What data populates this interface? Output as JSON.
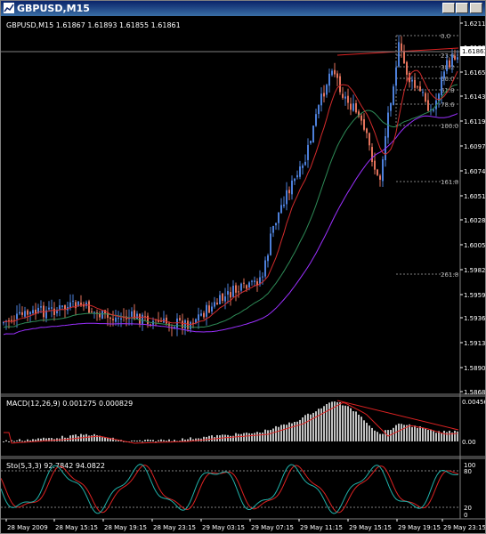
{
  "window": {
    "title": "GBPUSD,M15"
  },
  "header": {
    "text": "GBPUSD,M15  1.61867 1.61893 1.61855 1.61861"
  },
  "price_axis": {
    "ticks": [
      "1.62110",
      "1.61865",
      "1.61650",
      "1.61430",
      "1.61195",
      "1.60970",
      "1.60740",
      "1.60510",
      "1.60280",
      "1.60050",
      "1.59820",
      "1.59590",
      "1.59365",
      "1.59135",
      "1.58905",
      "1.58680"
    ],
    "current_price": "1.61861"
  },
  "fib_levels": [
    {
      "label": "0.0"
    },
    {
      "label": "23.6"
    },
    {
      "label": "38.2"
    },
    {
      "label": "50.0"
    },
    {
      "label": "61.8"
    },
    {
      "label": "78.6"
    },
    {
      "label": "100.0"
    },
    {
      "label": "161.8"
    },
    {
      "label": "261.8"
    }
  ],
  "time_axis": {
    "labels": [
      "28 May 2009",
      "28 May 15:15",
      "28 May 19:15",
      "28 May 23:15",
      "29 May 03:15",
      "29 May 07:15",
      "29 May 11:15",
      "29 May 15:15",
      "29 May 19:15",
      "29 May 23:15"
    ]
  },
  "macd": {
    "label": "MACD(12,26,9) 0.001275 0.000829",
    "axis": [
      "0.004560",
      "0.00"
    ]
  },
  "stoch": {
    "label": "Sto(5,3,3) 92.7842 94.0822",
    "axis": [
      "100",
      "80",
      "20",
      "0"
    ]
  },
  "colors": {
    "bull": "#4d7fd9",
    "bear": "#e2725b",
    "ma_fast": "#d22b2b",
    "ma_mid": "#2e8b57",
    "ma_slow": "#9b30ff",
    "stoch_main": "#20b2aa",
    "stoch_signal": "#dd2222",
    "macd_hist": "#c0c0c0",
    "macd_signal": "#dd2222"
  }
}
